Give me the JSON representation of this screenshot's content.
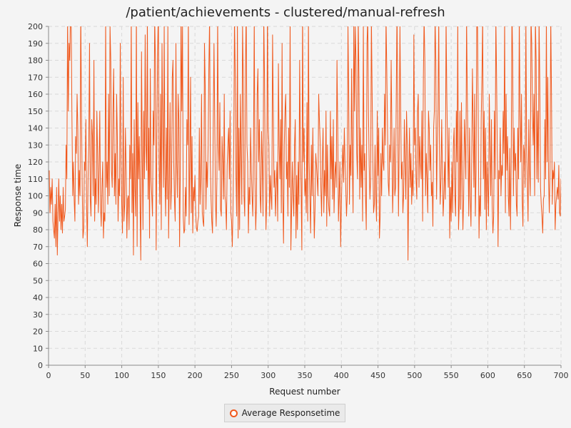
{
  "chart_data": {
    "type": "line",
    "title": "/patient/achievements - clustered/manual-refresh",
    "xlabel": "Request number",
    "ylabel": "Response time",
    "xlim": [
      0,
      700
    ],
    "ylim": [
      0,
      200
    ],
    "x_ticks": [
      0,
      50,
      100,
      150,
      200,
      250,
      300,
      350,
      400,
      450,
      500,
      550,
      600,
      650,
      700
    ],
    "y_ticks": [
      0,
      10,
      20,
      30,
      40,
      50,
      60,
      70,
      80,
      90,
      100,
      110,
      120,
      130,
      140,
      150,
      160,
      170,
      180,
      190,
      200
    ],
    "grid": true,
    "legend_position": "bottom-center",
    "series": [
      {
        "name": "Average Responsetime",
        "color": "#f0591e",
        "x_start": 1,
        "x_step": 1,
        "values": [
          115,
          90,
          105,
          95,
          110,
          85,
          80,
          75,
          95,
          70,
          105,
          65,
          90,
          110,
          85,
          100,
          80,
          95,
          78,
          105,
          85,
          88,
          92,
          130,
          110,
          205,
          150,
          190,
          180,
          210,
          200,
          145,
          100,
          120,
          98,
          85,
          135,
          125,
          160,
          140,
          95,
          115,
          100,
          210,
          150,
          105,
          75,
          80,
          120,
          115,
          145,
          95,
          70,
          110,
          130,
          190,
          98,
          88,
          145,
          135,
          100,
          180,
          85,
          110,
          95,
          150,
          125,
          90,
          115,
          150,
          95,
          82,
          105,
          120,
          75,
          90,
          85,
          205,
          105,
          120,
          95,
          160,
          100,
          200,
          180,
          115,
          105,
          150,
          175,
          100,
          125,
          95,
          160,
          135,
          85,
          110,
          100,
          190,
          120,
          95,
          78,
          170,
          85,
          95,
          140,
          115,
          75,
          98,
          100,
          80,
          130,
          110,
          205,
          90,
          125,
          65,
          145,
          105,
          88,
          210,
          70,
          155,
          110,
          135,
          95,
          62,
          185,
          125,
          80,
          150,
          110,
          195,
          130,
          115,
          205,
          98,
          140,
          75,
          175,
          110,
          100,
          88,
          150,
          130,
          205,
          180,
          68,
          135,
          185,
          210,
          120,
          95,
          160,
          80,
          190,
          140,
          105,
          200,
          112,
          88,
          140,
          98,
          200,
          75,
          110,
          155,
          92,
          105,
          170,
          180,
          120,
          98,
          85,
          190,
          120,
          99,
          160,
          145,
          70,
          115,
          210,
          150,
          200,
          88,
          78,
          80,
          105,
          88,
          145,
          130,
          205,
          83,
          120,
          170,
          90,
          135,
          78,
          105,
          97,
          112,
          90,
          81,
          79,
          85,
          88,
          140,
          95,
          110,
          160,
          90,
          85,
          82,
          190,
          165,
          92,
          120,
          105,
          130,
          175,
          205,
          120,
          98,
          85,
          78,
          140,
          190,
          145,
          98,
          82,
          110,
          205,
          130,
          115,
          155,
          92,
          88,
          135,
          120,
          98,
          160,
          100,
          95,
          80,
          118,
          130,
          140,
          110,
          150,
          90,
          85,
          70,
          95,
          130,
          205,
          172,
          112,
          88,
          205,
          75,
          140,
          80,
          160,
          125,
          95,
          200,
          170,
          100,
          88,
          175,
          210,
          130,
          120,
          78,
          105,
          95,
          140,
          115,
          100,
          88,
          130,
          205,
          110,
          80,
          95,
          160,
          175,
          120,
          145,
          100,
          90,
          138,
          120,
          88,
          205,
          170,
          115,
          80,
          98,
          210,
          140,
          130,
          88,
          112,
          100,
          92,
          195,
          150,
          105,
          115,
          88,
          105,
          120,
          85,
          178,
          130,
          110,
          145,
          90,
          190,
          100,
          72,
          130,
          150,
          160,
          110,
          120,
          88,
          140,
          105,
          205,
          68,
          92,
          120,
          100,
          88,
          130,
          145,
          75,
          112,
          80,
          120,
          95,
          180,
          125,
          105,
          68,
          210,
          120,
          140,
          100,
          110,
          90,
          155,
          85,
          205,
          120,
          98,
          78,
          130,
          100,
          140,
          105,
          75,
          92,
          125,
          118,
          110,
          100,
          160,
          145,
          132,
          105,
          88,
          120,
          140,
          90,
          115,
          100,
          150,
          82,
          130,
          100,
          92,
          88,
          150,
          110,
          135,
          98,
          145,
          90,
          112,
          120,
          105,
          180,
          140,
          85,
          100,
          120,
          70,
          95,
          115,
          130,
          108,
          140,
          120,
          105,
          88,
          100,
          200,
          160,
          95,
          130,
          112,
          175,
          120,
          90,
          205,
          150,
          200,
          180,
          125,
          110,
          205,
          170,
          98,
          140,
          105,
          130,
          85,
          200,
          115,
          125,
          100,
          80,
          190,
          205,
          150,
          118,
          98,
          110,
          205,
          160,
          120,
          90,
          95,
          130,
          100,
          85,
          150,
          112,
          140,
          75,
          88,
          125,
          100,
          140,
          120,
          115,
          160,
          130,
          205,
          175,
          140,
          108,
          100,
          130,
          120,
          180,
          138,
          90,
          110,
          140,
          100,
          105,
          160,
          210,
          145,
          88,
          130,
          200,
          150,
          110,
          120,
          90,
          100,
          145,
          120,
          98,
          150,
          130,
          62,
          110,
          140,
          105,
          125,
          95,
          115,
          100,
          195,
          130,
          140,
          110,
          98,
          150,
          160,
          105,
          135,
          120,
          110,
          150,
          85,
          170,
          205,
          180,
          100,
          125,
          110,
          90,
          150,
          140,
          115,
          130,
          100,
          108,
          82,
          140,
          150,
          205,
          180,
          98,
          130,
          150,
          205,
          125,
          95,
          110,
          145,
          115,
          88,
          100,
          120,
          98,
          205,
          160,
          130,
          105,
          140,
          75,
          105,
          85,
          120,
          90,
          130,
          140,
          100,
          88,
          150,
          120,
          205,
          80,
          95,
          150,
          92,
          155,
          110,
          80,
          98,
          145,
          130,
          110,
          205,
          160,
          125,
          88,
          140,
          100,
          82,
          120,
          175,
          140,
          105,
          160,
          88,
          115,
          205,
          200,
          140,
          75,
          100,
          88,
          145,
          170,
          205,
          110,
          150,
          92,
          140,
          80,
          120,
          105,
          88,
          160,
          130,
          100,
          145,
          95,
          78,
          88,
          150,
          110,
          205,
          170,
          125,
          70,
          115,
          110,
          140,
          100,
          118,
          112,
          150,
          125,
          205,
          90,
          160,
          115,
          135,
          100,
          88,
          128,
          80,
          120,
          210,
          180,
          100,
          140,
          115,
          125,
          95,
          88,
          140,
          110,
          205,
          150,
          120,
          160,
          98,
          82,
          130,
          125,
          105,
          205,
          130,
          108,
          85,
          145,
          115,
          100,
          205,
          190,
          150,
          130,
          160,
          100,
          205,
          180,
          110,
          150,
          108,
          205,
          168,
          105,
          95,
          88,
          78,
          98,
          100,
          145,
          110,
          205,
          120,
          170,
          110,
          90,
          115,
          205,
          160,
          95,
          115,
          110,
          120,
          80,
          95,
          100,
          105,
          98,
          118,
          90,
          88,
          110,
          85,
          95,
          98,
          128,
          130,
          100,
          162
        ]
      }
    ]
  }
}
